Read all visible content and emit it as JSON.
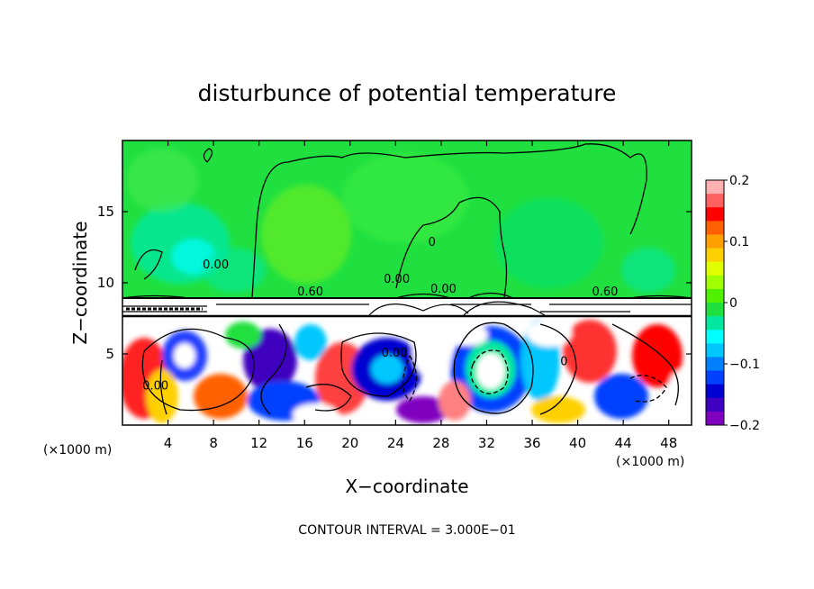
{
  "chart_data": {
    "type": "heatmap",
    "title": "disturbunce of potential temperature",
    "xlabel": "X−coordinate",
    "ylabel": "Z−coordinate",
    "x_units_left": "(×1000 m)",
    "x_units_right": "(×1000 m)",
    "footer": "CONTOUR INTERVAL = 3.000E−01",
    "xlim": [
      0,
      50
    ],
    "ylim": [
      0,
      20
    ],
    "x_ticks": [
      4,
      8,
      12,
      16,
      20,
      24,
      28,
      32,
      36,
      40,
      44,
      48
    ],
    "x_tick_labels": [
      "4",
      "8",
      "12",
      "16",
      "20",
      "24",
      "28",
      "32",
      "36",
      "40",
      "44",
      "48"
    ],
    "y_ticks": [
      5,
      10,
      15
    ],
    "y_tick_labels": [
      "5",
      "10",
      "15"
    ],
    "colorbar": {
      "min": -0.2,
      "max": 0.2,
      "ticks": [
        0.2,
        0.1,
        0,
        -0.1,
        -0.2
      ],
      "tick_labels": [
        "0.2",
        "0.1",
        "0",
        "−0.1",
        "−0.2"
      ],
      "colors": [
        "#ffb0b0",
        "#ff6060",
        "#ff0000",
        "#ff6000",
        "#ffa000",
        "#ffd000",
        "#e0ff00",
        "#a0ff00",
        "#50f000",
        "#20e040",
        "#00e8a0",
        "#00ffff",
        "#00c8ff",
        "#0080ff",
        "#0040ff",
        "#0000d0",
        "#4000c0",
        "#8000c0"
      ]
    },
    "contour_labels": [
      {
        "text": "0.00",
        "x": 8.2,
        "y": 11.0
      },
      {
        "text": "0.60",
        "x": 16.5,
        "y": 9.1
      },
      {
        "text": "0.00",
        "x": 24.1,
        "y": 10.0
      },
      {
        "text": "0",
        "x": 27.2,
        "y": 12.6
      },
      {
        "text": "0.00",
        "x": 23.9,
        "y": 4.8
      },
      {
        "text": "0.00",
        "x": 28.2,
        "y": 9.3
      },
      {
        "text": "0.60",
        "x": 42.4,
        "y": 9.1
      },
      {
        "text": "0",
        "x": 38.8,
        "y": 4.2
      },
      {
        "text": "0.00",
        "x": 2.9,
        "y": 2.5
      }
    ]
  }
}
